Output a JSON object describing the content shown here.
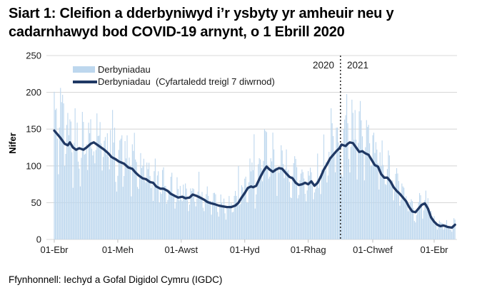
{
  "title": {
    "text": "Siart 1: Cleifion a dderbyniwyd i’r ysbyty yr amheuir neu y cadarnhawyd bod COVID-19 arnynt, o 1 Ebrill 2020"
  },
  "footer": {
    "source": "Ffynhonnell: Iechyd a Gofal Digidol Cymru (IGDC)"
  },
  "colors": {
    "bars": "#BDD7EE",
    "line": "#1F3864",
    "gridline": "#D9D9D9",
    "tick": "#BFBFBF",
    "divider": "#000000",
    "text": "#1a1a1a"
  },
  "chart_data": {
    "type": "bar+line",
    "title": "Siart 1: Cleifion a dderbyniwyd i’r ysbyty yr amheuir neu y cadarnhawyd bod COVID-19 arnynt, o 1 Ebrill 2020",
    "xlabel": "",
    "ylabel": "Nifer",
    "ylim": [
      0,
      250
    ],
    "y_ticks": [
      0,
      50,
      100,
      150,
      200,
      250
    ],
    "grid": "horizontal",
    "legend_position": "top-left",
    "x_start_date": "2020-04-01",
    "x_end_day": 385,
    "x_ticks": [
      {
        "label": "01-Ebr",
        "day": 0
      },
      {
        "label": "01-Meh",
        "day": 61
      },
      {
        "label": "01-Awst",
        "day": 122
      },
      {
        "label": "01-Hyd",
        "day": 183
      },
      {
        "label": "01-Rhag",
        "day": 244
      },
      {
        "label": "01-Chwef",
        "day": 306
      },
      {
        "label": "01-Ebr",
        "day": 365
      }
    ],
    "year_divider": {
      "day": 275,
      "left_label": "2020",
      "right_label": "2021"
    },
    "legend": [
      {
        "label": "Derbyniadau",
        "type": "bar",
        "color": "#BDD7EE"
      },
      {
        "label": "Derbyniadau  (Cyfartaledd treigl 7 diwrnod)",
        "type": "line",
        "color": "#1F3864"
      }
    ],
    "series": [
      {
        "name": "Derbyniadau (Cyfartaledd treigl 7 diwrnod)",
        "type": "line",
        "points": [
          [
            "2020-04-01",
            148
          ],
          [
            "2020-04-04",
            143
          ],
          [
            "2020-04-07",
            138
          ],
          [
            "2020-04-11",
            130
          ],
          [
            "2020-04-14",
            128
          ],
          [
            "2020-04-16",
            132
          ],
          [
            "2020-04-19",
            125
          ],
          [
            "2020-04-22",
            122
          ],
          [
            "2020-04-25",
            124
          ],
          [
            "2020-04-29",
            122
          ],
          [
            "2020-05-02",
            125
          ],
          [
            "2020-05-06",
            130
          ],
          [
            "2020-05-09",
            132
          ],
          [
            "2020-05-13",
            128
          ],
          [
            "2020-05-16",
            125
          ],
          [
            "2020-05-19",
            122
          ],
          [
            "2020-05-23",
            117
          ],
          [
            "2020-05-26",
            112
          ],
          [
            "2020-05-30",
            109
          ],
          [
            "2020-06-02",
            106
          ],
          [
            "2020-06-07",
            103
          ],
          [
            "2020-06-11",
            98
          ],
          [
            "2020-06-15",
            96
          ],
          [
            "2020-06-18",
            91
          ],
          [
            "2020-06-21",
            87
          ],
          [
            "2020-06-25",
            83
          ],
          [
            "2020-06-28",
            82
          ],
          [
            "2020-07-02",
            78
          ],
          [
            "2020-07-05",
            77
          ],
          [
            "2020-07-08",
            72
          ],
          [
            "2020-07-12",
            69
          ],
          [
            "2020-07-15",
            69
          ],
          [
            "2020-07-19",
            66
          ],
          [
            "2020-07-22",
            62
          ],
          [
            "2020-07-26",
            59
          ],
          [
            "2020-07-29",
            57
          ],
          [
            "2020-08-02",
            58
          ],
          [
            "2020-08-05",
            56
          ],
          [
            "2020-08-09",
            57
          ],
          [
            "2020-08-12",
            61
          ],
          [
            "2020-08-16",
            59
          ],
          [
            "2020-08-19",
            57
          ],
          [
            "2020-08-23",
            54
          ],
          [
            "2020-08-26",
            51
          ],
          [
            "2020-08-30",
            49
          ],
          [
            "2020-09-02",
            48
          ],
          [
            "2020-09-06",
            46
          ],
          [
            "2020-09-10",
            45
          ],
          [
            "2020-09-14",
            44
          ],
          [
            "2020-09-18",
            44
          ],
          [
            "2020-09-22",
            46
          ],
          [
            "2020-09-25",
            50
          ],
          [
            "2020-09-28",
            57
          ],
          [
            "2020-10-01",
            63
          ],
          [
            "2020-10-04",
            70
          ],
          [
            "2020-10-07",
            72
          ],
          [
            "2020-10-09",
            71
          ],
          [
            "2020-10-12",
            73
          ],
          [
            "2020-10-16",
            85
          ],
          [
            "2020-10-19",
            93
          ],
          [
            "2020-10-22",
            99
          ],
          [
            "2020-10-25",
            95
          ],
          [
            "2020-10-28",
            92
          ],
          [
            "2020-10-31",
            95
          ],
          [
            "2020-11-03",
            97
          ],
          [
            "2020-11-06",
            96
          ],
          [
            "2020-11-09",
            91
          ],
          [
            "2020-11-13",
            85
          ],
          [
            "2020-11-16",
            83
          ],
          [
            "2020-11-19",
            77
          ],
          [
            "2020-11-22",
            74
          ],
          [
            "2020-11-25",
            75
          ],
          [
            "2020-11-28",
            77
          ],
          [
            "2020-12-01",
            75
          ],
          [
            "2020-12-04",
            79
          ],
          [
            "2020-12-07",
            73
          ],
          [
            "2020-12-10",
            77
          ],
          [
            "2020-12-13",
            85
          ],
          [
            "2020-12-16",
            95
          ],
          [
            "2020-12-19",
            102
          ],
          [
            "2020-12-22",
            110
          ],
          [
            "2020-12-25",
            115
          ],
          [
            "2020-12-28",
            120
          ],
          [
            "2020-12-31",
            124
          ],
          [
            "2021-01-02",
            129
          ],
          [
            "2021-01-04",
            128
          ],
          [
            "2021-01-06",
            127
          ],
          [
            "2021-01-08",
            130
          ],
          [
            "2021-01-10",
            132
          ],
          [
            "2021-01-13",
            131
          ],
          [
            "2021-01-16",
            125
          ],
          [
            "2021-01-19",
            119
          ],
          [
            "2021-01-22",
            120
          ],
          [
            "2021-01-25",
            117
          ],
          [
            "2021-01-28",
            115
          ],
          [
            "2021-01-31",
            108
          ],
          [
            "2021-02-03",
            101
          ],
          [
            "2021-02-06",
            99
          ],
          [
            "2021-02-09",
            89
          ],
          [
            "2021-02-12",
            84
          ],
          [
            "2021-02-15",
            84
          ],
          [
            "2021-02-18",
            79
          ],
          [
            "2021-02-21",
            71
          ],
          [
            "2021-02-24",
            66
          ],
          [
            "2021-02-27",
            62
          ],
          [
            "2021-03-02",
            57
          ],
          [
            "2021-03-05",
            52
          ],
          [
            "2021-03-08",
            44
          ],
          [
            "2021-03-11",
            38
          ],
          [
            "2021-03-14",
            37
          ],
          [
            "2021-03-17",
            42
          ],
          [
            "2021-03-20",
            47
          ],
          [
            "2021-03-23",
            49
          ],
          [
            "2021-03-26",
            42
          ],
          [
            "2021-03-29",
            30
          ],
          [
            "2021-04-01",
            24
          ],
          [
            "2021-04-04",
            20
          ],
          [
            "2021-04-07",
            18
          ],
          [
            "2021-04-10",
            19
          ],
          [
            "2021-04-14",
            17
          ],
          [
            "2021-04-18",
            16
          ],
          [
            "2021-04-21",
            20
          ]
        ]
      },
      {
        "name": "Derbyniadau",
        "type": "bar",
        "note": "daily admissions; values fluctuate around the 7-day rolling average and are generated deterministically from it",
        "generation": {
          "seed": 42,
          "weekday_factors": [
            0.7,
            1.0,
            1.15,
            1.2,
            1.15,
            1.05,
            0.82
          ],
          "random_band": [
            0.8,
            1.35
          ],
          "clamp": [
            4,
            206
          ],
          "spikes": [
            {
              "day": 2,
              "value": 178
            },
            {
              "day": 6,
              "value": 206
            },
            {
              "day": 9,
              "value": 185
            },
            {
              "day": 13,
              "value": 172
            },
            {
              "day": 139,
              "value": 92
            },
            {
              "day": 177,
              "value": 100
            },
            {
              "day": 192,
              "value": 143
            },
            {
              "day": 202,
              "value": 150
            },
            {
              "day": 204,
              "value": 146
            },
            {
              "day": 271,
              "value": 152
            },
            {
              "day": 279,
              "value": 163
            },
            {
              "day": 282,
              "value": 158
            }
          ]
        }
      }
    ]
  }
}
